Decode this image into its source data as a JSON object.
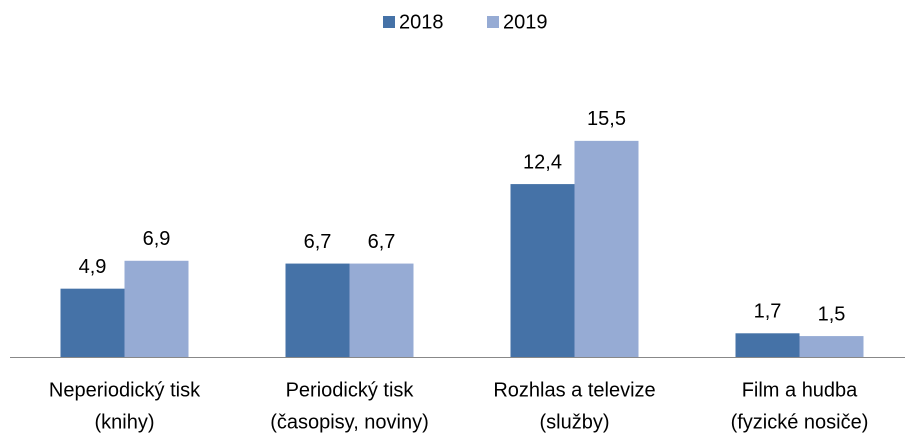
{
  "chart_data": {
    "type": "bar",
    "categories": [
      [
        "Neperiodický tisk",
        "(knihy)"
      ],
      [
        "Periodický tisk",
        "(časopisy, noviny)"
      ],
      [
        "Rozhlas a televize",
        "(služby)"
      ],
      [
        "Film a hudba",
        "(fyzické nosiče)"
      ]
    ],
    "series": [
      {
        "name": "2018",
        "color": "#4572a7",
        "values": [
          4.9,
          6.7,
          12.4,
          1.7
        ],
        "value_labels": [
          "4,9",
          "6,7",
          "12,4",
          "1,7"
        ]
      },
      {
        "name": "2019",
        "color": "#96abd4",
        "values": [
          6.9,
          6.7,
          15.5,
          1.5
        ],
        "value_labels": [
          "6,9",
          "6,7",
          "15,5",
          "1,5"
        ]
      }
    ],
    "ylim": [
      0,
      18
    ],
    "legend": "top"
  }
}
